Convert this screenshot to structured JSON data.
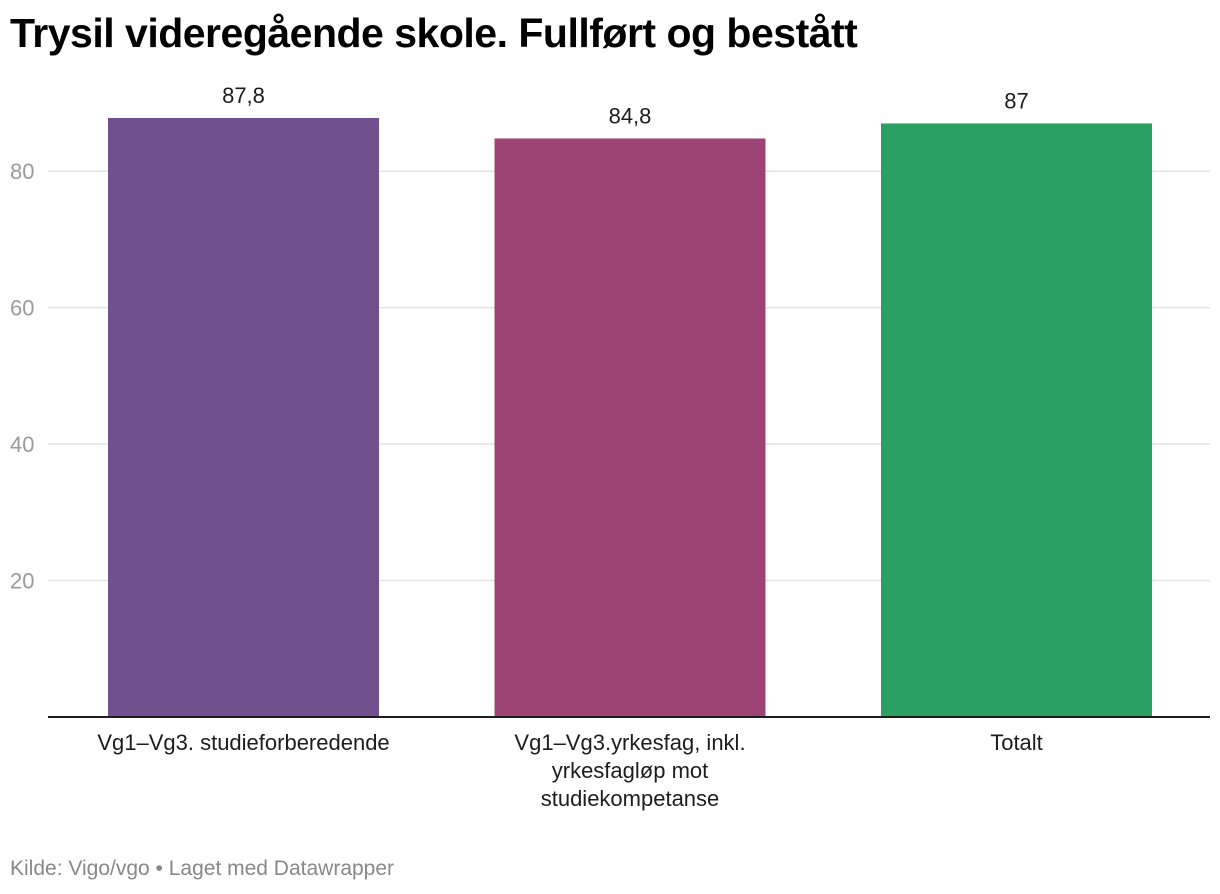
{
  "chart_data": {
    "type": "bar",
    "title": "Trysil videregående skole. Fullført og bestått",
    "categories": [
      "Vg1–Vg3. studieforberedende",
      "Vg1–Vg3.yrkesfag, inkl. yrkesfagløp mot studiekompetanse",
      "Totalt"
    ],
    "category_lines": [
      [
        "Vg1–Vg3. studieforberedende"
      ],
      [
        "Vg1–Vg3.yrkesfag, inkl.",
        "yrkesfagløp mot",
        "studiekompetanse"
      ],
      [
        "Totalt"
      ]
    ],
    "values": [
      87.8,
      84.8,
      87
    ],
    "value_labels": [
      "87,8",
      "84,8",
      "87"
    ],
    "colors": [
      "#71508f",
      "#9e4475",
      "#2aa063"
    ],
    "yticks": [
      20,
      40,
      60,
      80
    ],
    "ytick_labels": [
      "20",
      "40",
      "60",
      "80"
    ],
    "ylim": [
      0,
      87.8
    ],
    "grid": true,
    "xlabel": "",
    "ylabel": ""
  },
  "footer": {
    "source": "Kilde: Vigo/vgo • Laget med Datawrapper"
  }
}
